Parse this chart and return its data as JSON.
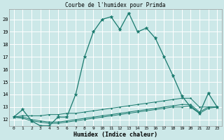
{
  "title": "Courbe de l'humidex pour Primda",
  "xlabel": "Humidex (Indice chaleur)",
  "bg_color": "#cce8e8",
  "line_color": "#1a7a6e",
  "grid_color": "#ffffff",
  "xlim": [
    -0.5,
    23.5
  ],
  "ylim": [
    11.5,
    20.8
  ],
  "yticks": [
    12,
    13,
    14,
    15,
    16,
    17,
    18,
    19,
    20
  ],
  "xticks": [
    0,
    1,
    2,
    3,
    4,
    5,
    6,
    7,
    8,
    9,
    10,
    11,
    12,
    13,
    14,
    15,
    16,
    17,
    18,
    19,
    20,
    21,
    22,
    23
  ],
  "series": [
    [
      12.2,
      12.8,
      11.9,
      11.5,
      11.5,
      12.2,
      12.2,
      14.0,
      17.0,
      19.0,
      20.0,
      20.2,
      19.2,
      20.5,
      19.0,
      19.3,
      18.5,
      17.0,
      15.5,
      13.9,
      13.0,
      12.5,
      14.1,
      13.0
    ],
    [
      12.2,
      12.3,
      12.3,
      12.3,
      12.4,
      12.4,
      12.5,
      12.5,
      12.6,
      12.7,
      12.8,
      12.9,
      13.0,
      13.1,
      13.2,
      13.3,
      13.4,
      13.5,
      13.6,
      13.7,
      13.7,
      13.0,
      13.0,
      13.0
    ],
    [
      12.2,
      12.2,
      12.0,
      11.9,
      11.8,
      11.8,
      11.9,
      12.0,
      12.1,
      12.2,
      12.3,
      12.4,
      12.5,
      12.6,
      12.7,
      12.8,
      12.9,
      13.0,
      13.1,
      13.2,
      13.2,
      12.6,
      13.0,
      13.0
    ],
    [
      12.2,
      12.1,
      11.9,
      11.8,
      11.7,
      11.7,
      11.8,
      11.9,
      12.0,
      12.1,
      12.2,
      12.3,
      12.4,
      12.5,
      12.6,
      12.7,
      12.8,
      12.9,
      13.0,
      13.0,
      13.1,
      12.5,
      12.9,
      13.0
    ]
  ]
}
